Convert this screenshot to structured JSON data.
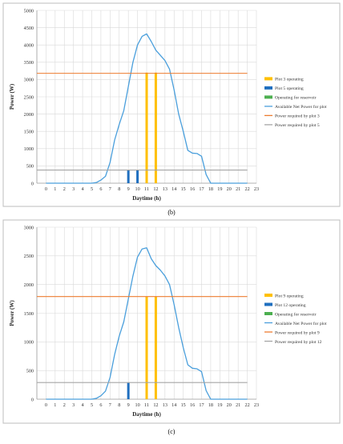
{
  "chart_data": [
    {
      "type": "line",
      "panel_label": "(b)",
      "xlabel": "Daytime (h)",
      "ylabel": "Power (W)",
      "x_ticks": [
        "0",
        "1",
        "2",
        "3",
        "4",
        "5",
        "6",
        "7",
        "8",
        "9",
        "10",
        "11",
        "12",
        "13",
        "14",
        "15",
        "16",
        "17",
        "18",
        "19",
        "20",
        "21",
        "22",
        "23"
      ],
      "xlim": [
        -1,
        23
      ],
      "ylim": [
        0,
        5000
      ],
      "y_ticks": [
        "0",
        "500",
        "1000",
        "1500",
        "2000",
        "2500",
        "3000",
        "3500",
        "4000",
        "4500",
        "5000"
      ],
      "grid": true,
      "legend_position": "right",
      "series": [
        {
          "name": "Plot 3 operating",
          "kind": "bars",
          "color": "#FFC000",
          "x": [
            11,
            12
          ],
          "values": [
            3200,
            3200
          ]
        },
        {
          "name": "Plot 5 operating",
          "kind": "bars",
          "color": "#1F6FBF",
          "x": [
            9,
            10
          ],
          "values": [
            380,
            380
          ]
        },
        {
          "name": "Operating for reservoir",
          "kind": "bars",
          "color": "#4CAF50",
          "x": [],
          "values": []
        },
        {
          "name": "Available Net Power for plot",
          "kind": "line",
          "color": "#4A9FDC",
          "x": [
            0,
            5,
            5.5,
            6,
            6.5,
            7,
            7.5,
            8,
            8.5,
            9,
            9.5,
            10,
            10.5,
            11,
            11.5,
            12,
            12.5,
            13,
            13.5,
            14,
            14.5,
            15,
            15.5,
            16,
            16.5,
            17,
            17.5,
            18,
            18.5,
            19,
            20,
            21,
            22
          ],
          "values": [
            0,
            0,
            20,
            90,
            200,
            600,
            1250,
            1700,
            2100,
            2800,
            3500,
            4000,
            4250,
            4320,
            4100,
            3850,
            3700,
            3550,
            3300,
            2700,
            2000,
            1500,
            950,
            870,
            860,
            780,
            250,
            0,
            0,
            0,
            0,
            0,
            0
          ]
        },
        {
          "name": "Power required by plot 3",
          "kind": "line",
          "color": "#ED7D31",
          "x": [
            -1,
            22
          ],
          "values": [
            3180,
            3180
          ]
        },
        {
          "name": "Power required by plot 5",
          "kind": "line",
          "color": "#A5A5A5",
          "x": [
            -1,
            22
          ],
          "values": [
            380,
            380
          ]
        }
      ]
    },
    {
      "type": "line",
      "panel_label": "(c)",
      "xlabel": "Daytime (h)",
      "ylabel": "Power (W)",
      "x_ticks": [
        "0",
        "1",
        "2",
        "3",
        "4",
        "5",
        "6",
        "7",
        "8",
        "9",
        "10",
        "11",
        "12",
        "13",
        "14",
        "15",
        "16",
        "17",
        "18",
        "19",
        "20",
        "21",
        "22",
        "23"
      ],
      "xlim": [
        -1,
        23
      ],
      "ylim": [
        0,
        3000
      ],
      "y_ticks": [
        "0",
        "500",
        "1000",
        "1500",
        "2000",
        "2500",
        "3000"
      ],
      "grid": true,
      "legend_position": "right",
      "series": [
        {
          "name": "Plot 9 operating",
          "kind": "bars",
          "color": "#FFC000",
          "x": [
            11,
            12
          ],
          "values": [
            1790,
            1790
          ]
        },
        {
          "name": "Plot 12 operating",
          "kind": "bars",
          "color": "#1F6FBF",
          "x": [
            9
          ],
          "values": [
            290
          ]
        },
        {
          "name": "Operating for reservoir",
          "kind": "bars",
          "color": "#4CAF50",
          "x": [],
          "values": []
        },
        {
          "name": "Available Net Power for plot",
          "kind": "line",
          "color": "#4A9FDC",
          "x": [
            0,
            5,
            5.5,
            6,
            6.5,
            7,
            7.5,
            8,
            8.5,
            9,
            9.5,
            10,
            10.5,
            11,
            11.5,
            12,
            12.5,
            13,
            13.5,
            14,
            14.5,
            15,
            15.5,
            16,
            16.5,
            17,
            17.5,
            18,
            18.5,
            19,
            20,
            21,
            22
          ],
          "values": [
            0,
            0,
            15,
            60,
            140,
            380,
            780,
            1100,
            1350,
            1750,
            2150,
            2480,
            2620,
            2640,
            2450,
            2330,
            2250,
            2150,
            2000,
            1650,
            1250,
            900,
            600,
            540,
            530,
            480,
            150,
            0,
            0,
            0,
            0,
            0,
            0
          ]
        },
        {
          "name": "Power required by plot 9",
          "kind": "line",
          "color": "#ED7D31",
          "x": [
            -1,
            22
          ],
          "values": [
            1790,
            1790
          ]
        },
        {
          "name": "Power required by plot 12",
          "kind": "line",
          "color": "#A5A5A5",
          "x": [
            -1,
            22
          ],
          "values": [
            290,
            290
          ]
        }
      ]
    }
  ]
}
